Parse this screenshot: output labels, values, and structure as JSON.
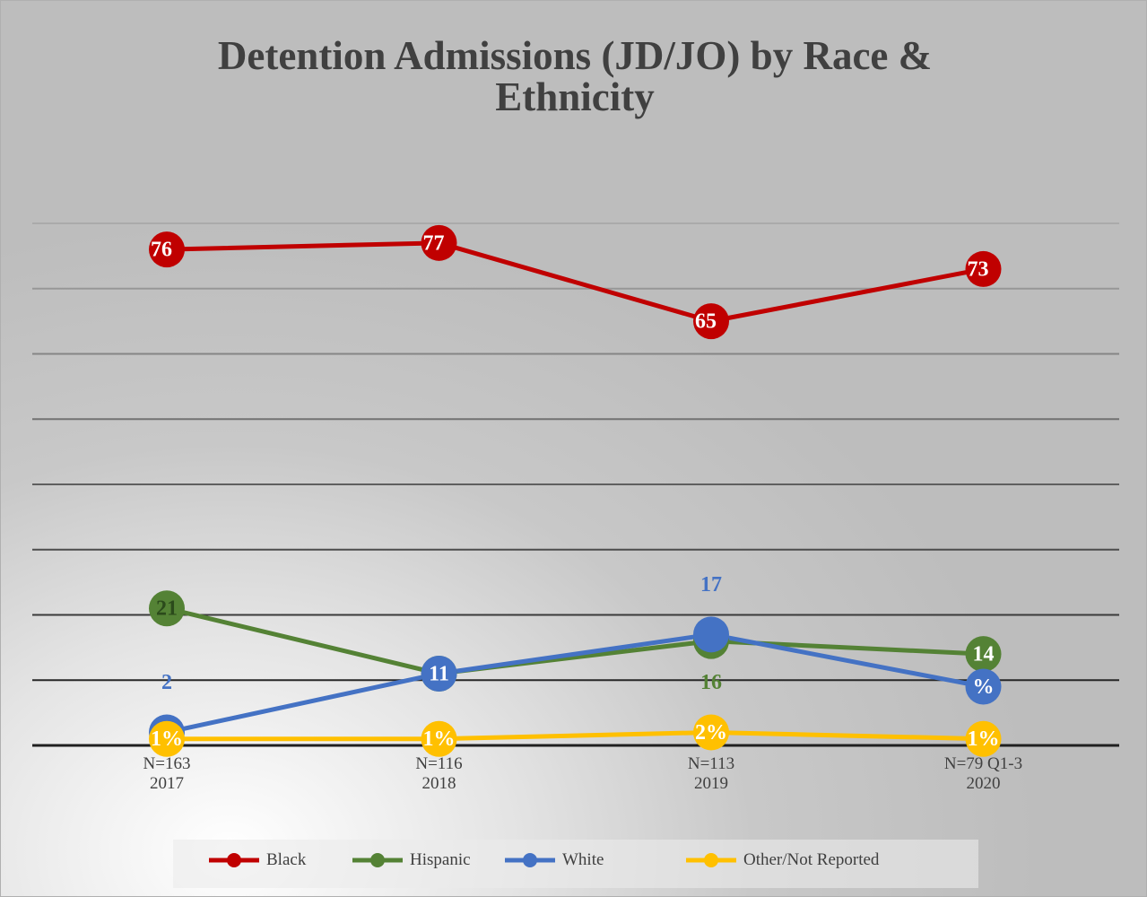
{
  "chart_data": {
    "type": "line",
    "title": "Detention Admissions (JD/JO) by Race & Ethnicity",
    "categories": [
      "N=163\n2017",
      "N=116\n2018",
      "N=113\n2019",
      "N=79 Q1-3\n2020"
    ],
    "series": [
      {
        "name": "Black",
        "color": "#c00000",
        "values": [
          76,
          77,
          65,
          73
        ]
      },
      {
        "name": "Hispanic",
        "color": "#548235",
        "values": [
          21,
          11,
          16,
          14
        ]
      },
      {
        "name": "White",
        "color": "#4472c4",
        "values": [
          2,
          11,
          17,
          9
        ],
        "value_labels": [
          "2",
          "11",
          "17",
          "%"
        ]
      },
      {
        "name": "Other/Not Reported",
        "color": "#ffc000",
        "values": [
          1,
          1,
          2,
          1
        ],
        "value_labels": [
          "1%",
          "1%",
          "2%",
          "1%"
        ]
      }
    ],
    "ylim": [
      0,
      80
    ],
    "yticks": [
      0,
      10,
      20,
      30,
      40,
      50,
      60,
      70,
      80
    ],
    "grid": true,
    "legend": "bottom"
  }
}
